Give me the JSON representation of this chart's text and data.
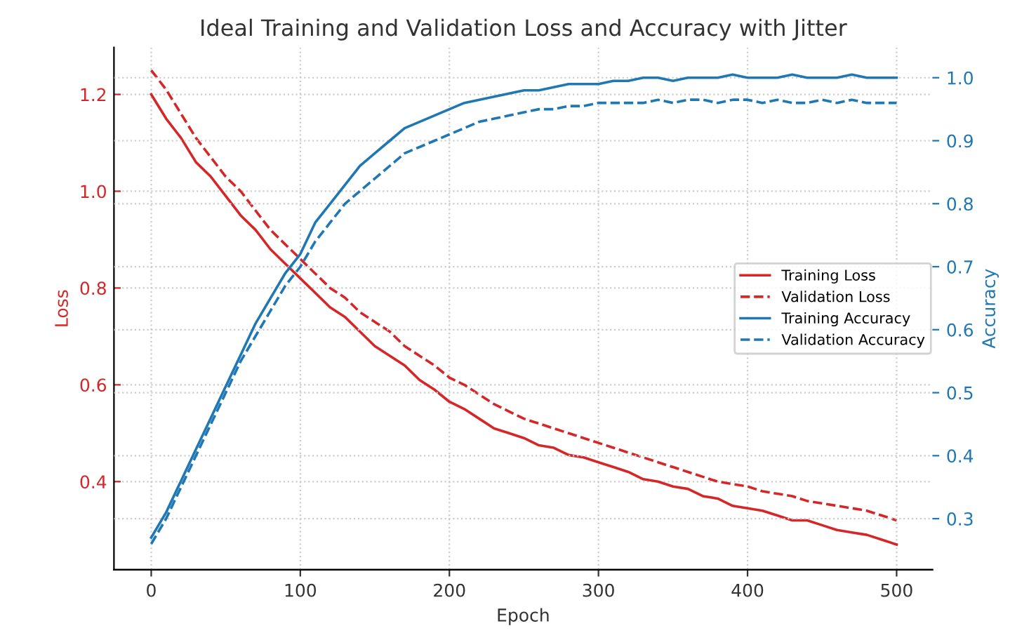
{
  "chart_data": {
    "type": "line",
    "title": "Ideal Training and Validation Loss and Accuracy with Jitter",
    "xlabel": "Epoch",
    "ylabel": "Loss",
    "y2label": "Accuracy",
    "x": [
      0,
      10,
      20,
      30,
      40,
      50,
      60,
      70,
      80,
      90,
      100,
      110,
      120,
      130,
      140,
      150,
      160,
      170,
      180,
      190,
      200,
      210,
      220,
      230,
      240,
      250,
      260,
      270,
      280,
      290,
      300,
      310,
      320,
      330,
      340,
      350,
      360,
      370,
      380,
      390,
      400,
      410,
      420,
      430,
      440,
      450,
      460,
      470,
      480,
      490,
      500
    ],
    "series": [
      {
        "name": "Training Loss",
        "color": "#d62728",
        "line_style": "solid",
        "values": [
          1.2,
          1.15,
          1.11,
          1.06,
          1.03,
          0.99,
          0.95,
          0.92,
          0.88,
          0.85,
          0.82,
          0.79,
          0.76,
          0.74,
          0.71,
          0.68,
          0.66,
          0.64,
          0.61,
          0.59,
          0.565,
          0.55,
          0.53,
          0.51,
          0.5,
          0.49,
          0.475,
          0.47,
          0.455,
          0.45,
          0.44,
          0.43,
          0.42,
          0.405,
          0.4,
          0.39,
          0.385,
          0.37,
          0.365,
          0.35,
          0.345,
          0.34,
          0.33,
          0.32,
          0.32,
          0.31,
          0.3,
          0.295,
          0.29,
          0.28,
          0.27
        ]
      },
      {
        "name": "Validation Loss",
        "color": "#d62728",
        "line_style": "dashed",
        "values": [
          1.25,
          1.21,
          1.16,
          1.11,
          1.07,
          1.03,
          1.0,
          0.96,
          0.92,
          0.89,
          0.86,
          0.83,
          0.8,
          0.78,
          0.75,
          0.73,
          0.71,
          0.68,
          0.66,
          0.64,
          0.615,
          0.6,
          0.58,
          0.56,
          0.545,
          0.53,
          0.52,
          0.51,
          0.5,
          0.49,
          0.48,
          0.47,
          0.46,
          0.45,
          0.44,
          0.43,
          0.42,
          0.41,
          0.4,
          0.395,
          0.39,
          0.38,
          0.375,
          0.37,
          0.36,
          0.355,
          0.35,
          0.345,
          0.34,
          0.33,
          0.32
        ]
      },
      {
        "name": "Training Accuracy",
        "color": "#1f77b4",
        "line_style": "solid",
        "axis": "y2",
        "values": [
          0.27,
          0.31,
          0.36,
          0.41,
          0.46,
          0.51,
          0.56,
          0.61,
          0.65,
          0.69,
          0.72,
          0.77,
          0.8,
          0.83,
          0.86,
          0.88,
          0.9,
          0.92,
          0.93,
          0.94,
          0.95,
          0.96,
          0.965,
          0.97,
          0.975,
          0.98,
          0.98,
          0.985,
          0.99,
          0.99,
          0.99,
          0.995,
          0.995,
          1.0,
          1.0,
          0.995,
          1.0,
          1.0,
          1.0,
          1.005,
          1.0,
          1.0,
          1.0,
          1.005,
          1.0,
          1.0,
          1.0,
          1.005,
          1.0,
          1.0,
          1.0
        ]
      },
      {
        "name": "Validation Accuracy",
        "color": "#1f77b4",
        "line_style": "dashed",
        "axis": "y2",
        "values": [
          0.26,
          0.3,
          0.35,
          0.4,
          0.45,
          0.5,
          0.55,
          0.59,
          0.63,
          0.67,
          0.7,
          0.74,
          0.77,
          0.8,
          0.82,
          0.84,
          0.86,
          0.88,
          0.89,
          0.9,
          0.91,
          0.92,
          0.93,
          0.935,
          0.94,
          0.945,
          0.95,
          0.95,
          0.955,
          0.955,
          0.96,
          0.96,
          0.96,
          0.96,
          0.965,
          0.96,
          0.965,
          0.965,
          0.96,
          0.965,
          0.965,
          0.96,
          0.965,
          0.96,
          0.96,
          0.965,
          0.96,
          0.965,
          0.96,
          0.96,
          0.96
        ]
      }
    ],
    "xlim": [
      -25,
      524
    ],
    "xticks": [
      0,
      100,
      200,
      300,
      400,
      500
    ],
    "ylim": [
      0.218,
      1.297
    ],
    "yticks": [
      0.4,
      0.6,
      0.8,
      {
        "value": 1,
        "label": "1.0"
      },
      1.2
    ],
    "y2lim": [
      0.219,
      1.048
    ],
    "y2ticks": [
      0.3,
      0.4,
      0.5,
      0.6,
      0.7,
      0.8,
      0.9,
      {
        "value": 1,
        "label": "1.0"
      }
    ],
    "grid": true,
    "legend": "right",
    "marker": "none"
  }
}
